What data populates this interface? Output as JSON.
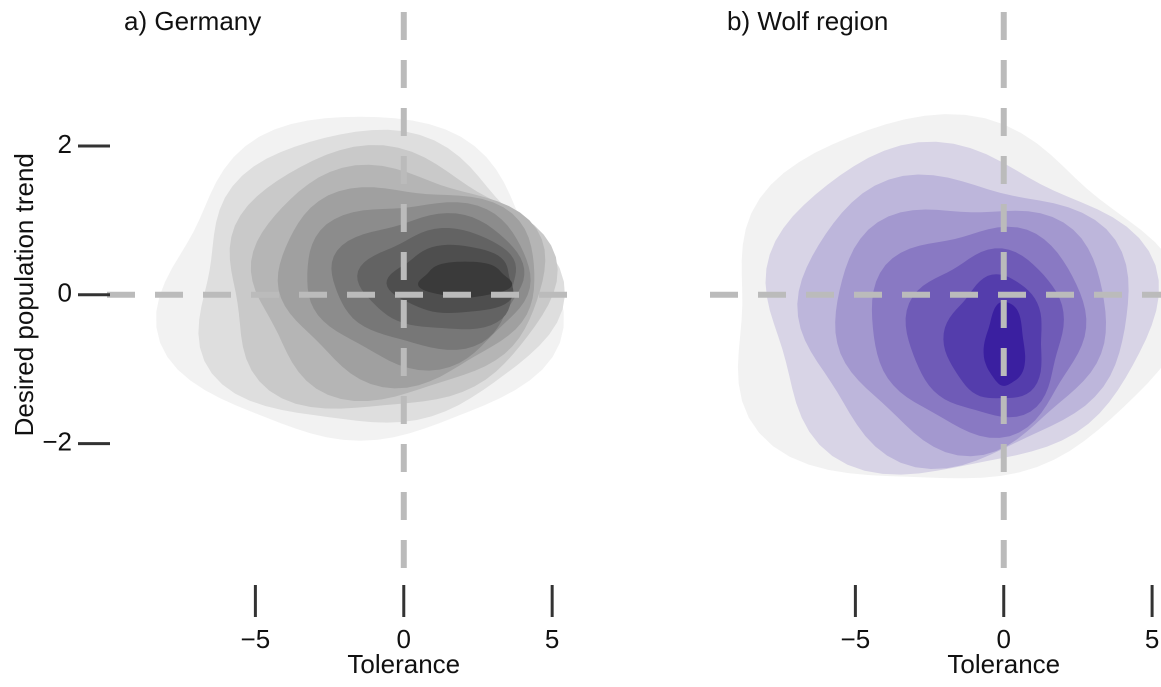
{
  "chart_data": [
    {
      "type": "density",
      "title": "a) Germany",
      "xlabel": "Tolerance",
      "ylabel": "Desired population trend",
      "color": "#3a3a3a",
      "xlim": [
        -10,
        5.5
      ],
      "ylim": [
        -3.9,
        3.8
      ],
      "xticks": [
        {
          "value": -5,
          "label": "−5"
        },
        0,
        5
      ],
      "yticks": [
        {
          "value": -2,
          "label": "−2"
        },
        0,
        2
      ]
    },
    {
      "type": "density",
      "title": "b) Wolf region",
      "xlabel": "Tolerance",
      "color": "#3a1fa0",
      "xlim": [
        -9.9,
        5.3
      ],
      "ylim": [
        -3.9,
        3.8
      ],
      "xticks": [
        {
          "value": -5,
          "label": "−5"
        },
        0,
        5
      ]
    }
  ]
}
